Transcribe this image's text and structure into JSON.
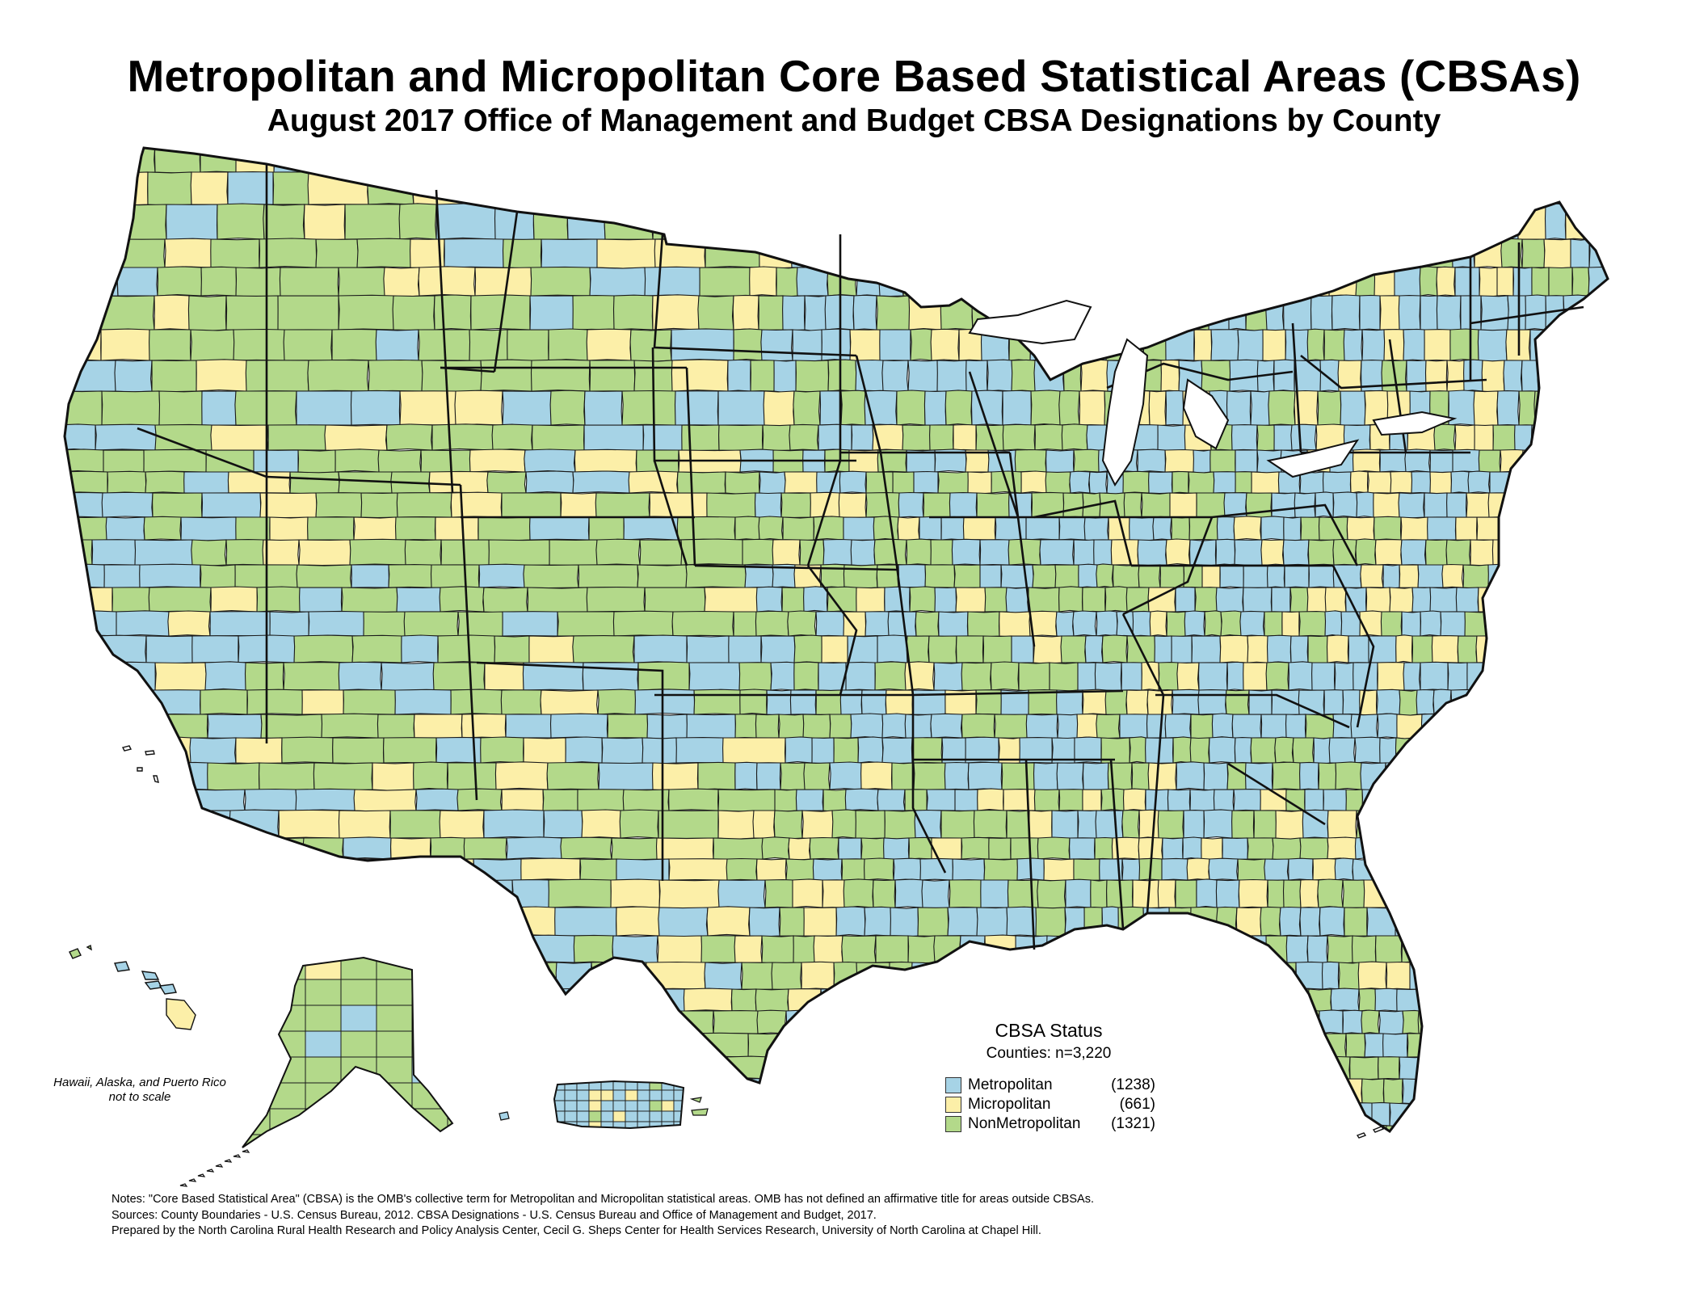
{
  "title": "Metropolitan and Micropolitan Core Based Statistical Areas (CBSAs)",
  "subtitle": "August 2017 Office of Management and Budget CBSA Designations by County",
  "inset_note": {
    "line1": "Hawaii, Alaska, and Puerto Rico",
    "line2": "not to scale"
  },
  "legend": {
    "title": "CBSA Status",
    "subtitle": "Counties: n=3,220",
    "items": [
      {
        "label": "Metropolitan",
        "count": "(1238)",
        "color": "#a6d3e6"
      },
      {
        "label": "Micropolitan",
        "count": "(661)",
        "color": "#fcefa8"
      },
      {
        "label": "NonMetropolitan",
        "count": "(1321)",
        "color": "#b3d98a"
      }
    ]
  },
  "notes": {
    "line1": "Notes: \"Core Based Statistical Area\" (CBSA) is the OMB's collective term for Metropolitan and Micropolitan statistical areas. OMB has not defined an affirmative title for areas outside CBSAs.",
    "line2": "Sources: County Boundaries - U.S. Census Bureau, 2012. CBSA Designations - U.S. Census Bureau and Office of Management and Budget, 2017.",
    "line3": "Prepared by the North Carolina Rural Health Research and Policy Analysis Center, Cecil G. Sheps Center for Health Services Research, University of North Carolina at Chapel Hill."
  },
  "colors": {
    "metropolitan": "#a6d3e6",
    "micropolitan": "#fcefa8",
    "nonmetropolitan": "#b3d98a",
    "boundary": "#111111"
  }
}
